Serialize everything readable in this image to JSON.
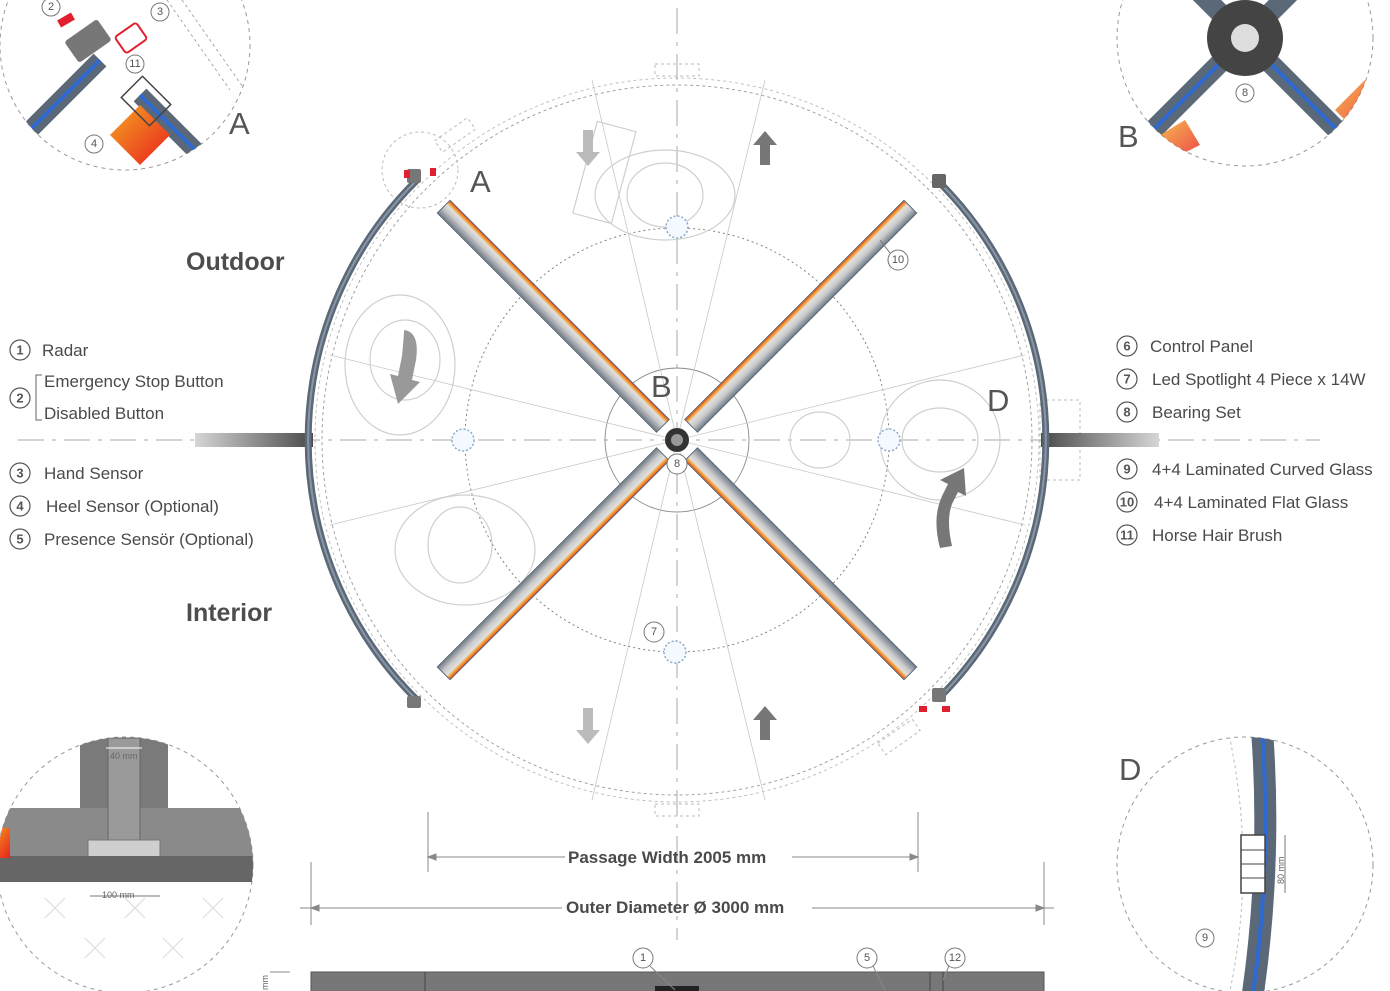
{
  "zones": {
    "outdoor": "Outdoor",
    "interior": "Interior"
  },
  "details": {
    "a": "A",
    "b": "B",
    "d": "D"
  },
  "legend_left": [
    {
      "num": "1",
      "label": "Radar"
    },
    {
      "num": "2",
      "label_top": "Emergency Stop Button",
      "label_bottom": "Disabled Button"
    },
    {
      "num": "3",
      "label": "Hand Sensor"
    },
    {
      "num": "4",
      "label": "Heel Sensor (Optional)"
    },
    {
      "num": "5",
      "label": "Presence Sensör (Optional)"
    }
  ],
  "legend_right": [
    {
      "num": "6",
      "label": "Control Panel"
    },
    {
      "num": "7",
      "label": "Led Spotlight 4 Piece x 14W"
    },
    {
      "num": "8",
      "label": "Bearing Set"
    },
    {
      "num": "9",
      "label": "4+4 Laminated Curved Glass"
    },
    {
      "num": "10",
      "label": "4+4 Laminated Flat Glass"
    },
    {
      "num": "11",
      "label": "Horse Hair Brush"
    }
  ],
  "dimensions": {
    "passage": "Passage Width 2005 mm",
    "outer": "Outer Diameter Ø 3000 mm"
  },
  "callouts": {
    "c10": "10",
    "c8": "8",
    "c7": "7",
    "bottom1": "1",
    "bottom5": "5",
    "bottom12": "12",
    "detA2": "2",
    "detA3": "3",
    "detA11": "11",
    "detA4": "4",
    "detB8": "8",
    "detD9": "9"
  },
  "detail_dims": {
    "w40": "40 mm",
    "w100": "100 mm",
    "h80": "80 mm",
    "edge": "mm"
  }
}
